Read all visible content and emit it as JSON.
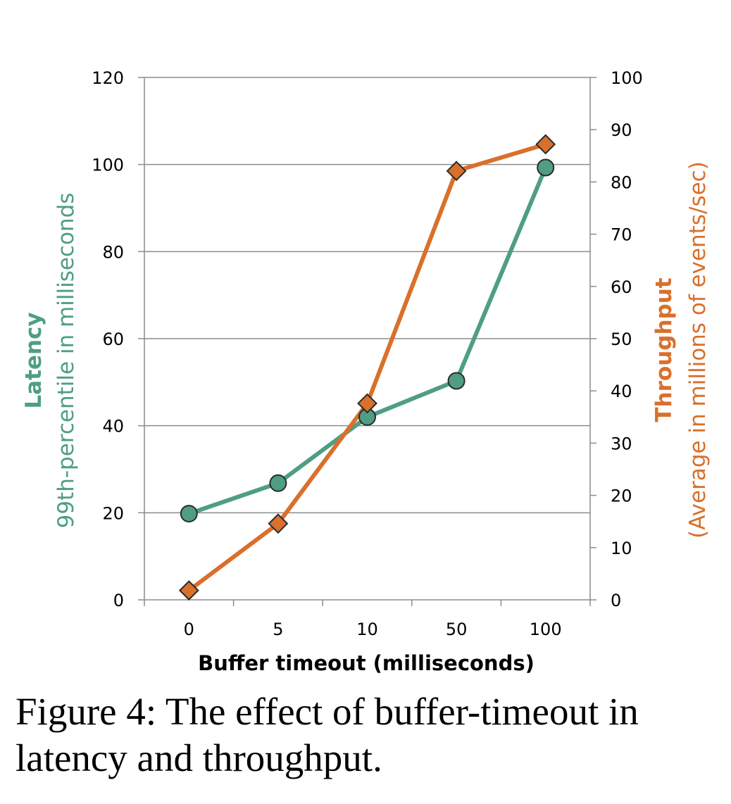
{
  "chart_data": {
    "type": "line",
    "categories": [
      "0",
      "5",
      "10",
      "50",
      "100"
    ],
    "xlabel": "Buffer timeout (milliseconds)",
    "y_left": {
      "label_bold": "Latency",
      "label": "99th-percentile in milliseconds",
      "ylim": [
        0,
        120
      ],
      "ticks": [
        0,
        20,
        40,
        60,
        80,
        100,
        120
      ],
      "color": "#4f9e84"
    },
    "y_right": {
      "label_bold": "Throughput",
      "label": "(Average in millions of events/sec)",
      "ylim": [
        0,
        100
      ],
      "ticks": [
        0,
        10,
        20,
        30,
        40,
        50,
        60,
        70,
        80,
        90,
        100
      ],
      "color": "#d9702b"
    },
    "grid": true,
    "series": [
      {
        "axis": "left",
        "marker": "circle",
        "color": "#4f9e84",
        "values": [
          19.8,
          26.8,
          42,
          50.3,
          99.3
        ]
      },
      {
        "axis": "right",
        "marker": "diamond",
        "color": "#d9702b",
        "values": [
          1.8,
          14.6,
          37.6,
          82.1,
          87.2
        ]
      }
    ]
  },
  "caption": "Figure 4:  The effect of buffer-timeout in latency and throughput."
}
